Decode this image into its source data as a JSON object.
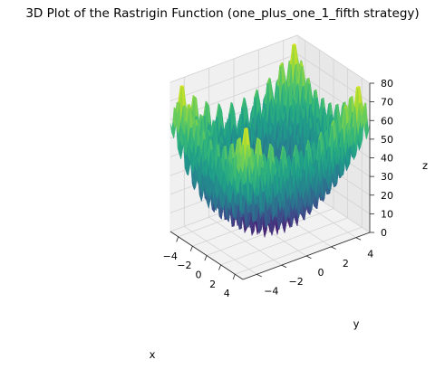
{
  "chart_data": {
    "type": "surface3d",
    "title": "3D Plot of the Rastrigin Function (one_plus_one_1_fifth strategy)",
    "function": "rastrigin",
    "colormap": "viridis",
    "xlabel": "x",
    "ylabel": "y",
    "zlabel": "z",
    "x_ticks": [
      "−4",
      "−2",
      "0",
      "2",
      "4"
    ],
    "y_ticks": [
      "−4",
      "−2",
      "0",
      "2",
      "4"
    ],
    "z_ticks": [
      "0",
      "10",
      "20",
      "30",
      "40",
      "50",
      "60",
      "70",
      "80"
    ],
    "xlim": [
      -5.12,
      5.12
    ],
    "ylim": [
      -5.12,
      5.12
    ],
    "zlim": [
      0,
      80
    ],
    "grid": true
  }
}
